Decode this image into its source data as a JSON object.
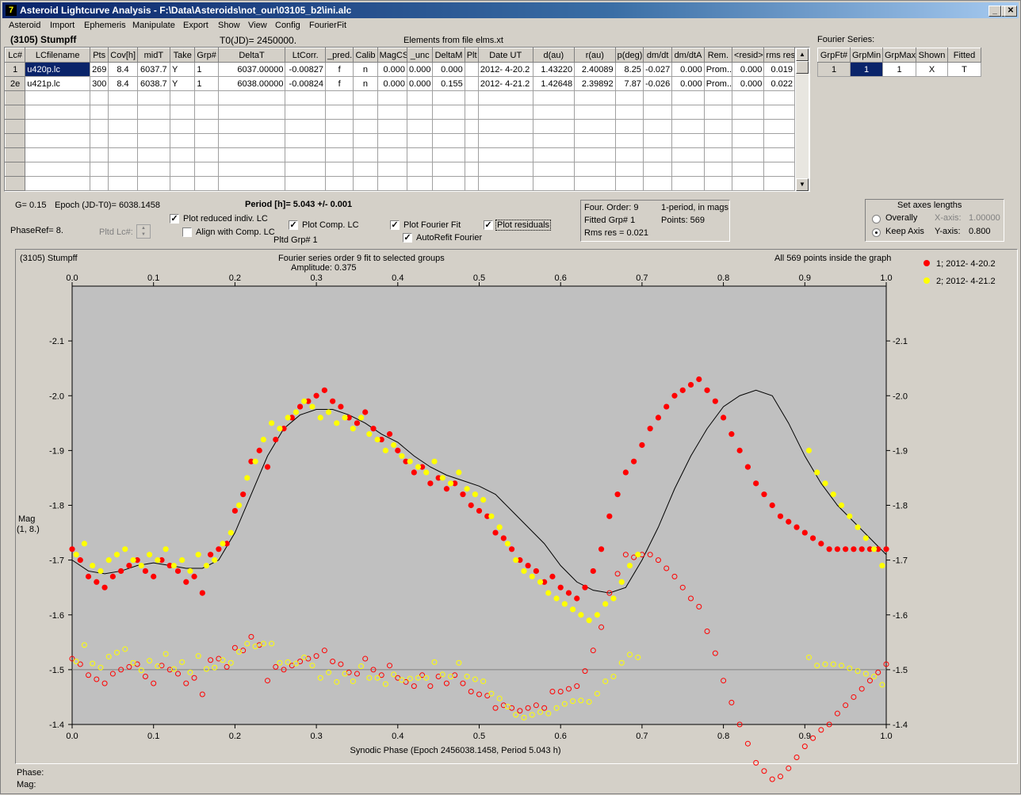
{
  "window": {
    "title": "Asteroid Lightcurve Analysis - F:\\Data\\Asteroids\\not_our\\03105_b2\\ini.alc"
  },
  "menu": [
    "Asteroid",
    "Import",
    "Ephemeris",
    "Manipulate",
    "Export",
    "Show",
    "View",
    "Config",
    "FourierFit"
  ],
  "header": {
    "asteroid": "(3105) Stumpff",
    "t0": "T0(JD)= 2450000.",
    "elements": "Elements from file elms.xt",
    "fourier_series": "Fourier Series:"
  },
  "lc_table": {
    "columns": [
      "Lc#",
      "LCfilename",
      "Pts",
      "Cov[h]",
      "midT",
      "Take",
      "Grp#",
      "DeltaT",
      "LtCorr.",
      "_pred.",
      "Calib",
      "MagCS",
      "_unc",
      "DeltaM",
      "Plt",
      "Date UT",
      "d(au)",
      "r(au)",
      "p(deg)",
      "dm/dt",
      "dm/dtA",
      "Rem.",
      "<resid>",
      "rms res"
    ],
    "rows": [
      [
        "1",
        "u420p.lc",
        "269",
        "8.4",
        "6037.7",
        "Y",
        "1",
        "6037.00000",
        "-0.00827",
        "f",
        "n",
        "0.000",
        "0.000",
        "0.000",
        "",
        "2012- 4-20.2",
        "1.43220",
        "2.40089",
        "8.25",
        "-0.027",
        "0.000",
        "Prom...",
        "0.000",
        "0.019"
      ],
      [
        "2e",
        "u421p.lc",
        "300",
        "8.4",
        "6038.7",
        "Y",
        "1",
        "6038.00000",
        "-0.00824",
        "f",
        "n",
        "0.000",
        "0.000",
        "0.155",
        "",
        "2012- 4-21.2",
        "1.42648",
        "2.39892",
        "7.87",
        "-0.026",
        "0.000",
        "Prom...",
        "0.000",
        "0.022"
      ]
    ]
  },
  "fourier_table": {
    "columns": [
      "GrpFt#",
      "GrpMin",
      "GrpMax",
      "Shown",
      "Fitted"
    ],
    "rows": [
      [
        "1",
        "1",
        "1",
        "X",
        "T"
      ]
    ]
  },
  "params": {
    "g": "G= 0.15",
    "epoch": "Epoch (JD-T0)= 6038.1458",
    "period": "Period [h]= 5.043 +/- 0.001",
    "phase_ref": "PhaseRef= 8.",
    "pltd_lc": "Pltd Lc#:",
    "pltd_grp": "Pltd Grp#  1"
  },
  "checkboxes": {
    "plot_reduced": "Plot reduced indiv. LC",
    "align": "Align with Comp. LC",
    "plot_comp": "Plot Comp. LC",
    "plot_fourier": "Plot Fourier Fit",
    "plot_residuals": "Plot residuals",
    "autorefit": "AutoRefit Fourier"
  },
  "fourier_info": {
    "order": "Four. Order:  9",
    "fitted": "Fitted Grp# 1",
    "rms": "Rms res     = 0.021",
    "period_mode": "1-period, in mags",
    "points": "Points: 569"
  },
  "axes_box": {
    "title": "Set axes lengths",
    "overall": "Overally",
    "keep": "Keep Axis",
    "xaxis": "X-axis:",
    "xval": "1.00000",
    "yaxis": "Y-axis:",
    "yval": "0.800"
  },
  "chart_header": {
    "name": "(3105) Stumpff",
    "fit_title": "Fourier series order 9 fit to selected groups",
    "amplitude": "Amplitude: 0.375",
    "inside": "All 569 points inside the graph",
    "ylabel1": "Mag",
    "ylabel2": "(1, 8.)",
    "legend": [
      "1; 2012- 4-20.2",
      "2; 2012- 4-21.2"
    ]
  },
  "status": {
    "phase": "Phase:",
    "mag": "Mag:"
  },
  "colors": {
    "series1": "#ff0000",
    "series2": "#ffff00",
    "plot_bg": "#c0c0c0"
  },
  "chart_data": {
    "type": "scatter",
    "xlabel": "Synodic Phase (Epoch 2456038.1458, Period 5.043 h)",
    "ylabel": "Mag",
    "xlim": [
      0,
      1
    ],
    "ylim": [
      -2.2,
      -1.4
    ],
    "y_inverted": true,
    "xticks": [
      "0.0",
      "0.1",
      "0.2",
      "0.3",
      "0.4",
      "0.5",
      "0.6",
      "0.7",
      "0.8",
      "0.9",
      "1.0"
    ],
    "yticks": [
      "-2.1",
      "-2.0",
      "-1.9",
      "-1.8",
      "-1.7",
      "-1.6",
      "-1.5",
      "-1.4"
    ],
    "fourier_curve": {
      "x": [
        0,
        0.02,
        0.04,
        0.06,
        0.08,
        0.1,
        0.12,
        0.14,
        0.16,
        0.18,
        0.2,
        0.22,
        0.24,
        0.26,
        0.28,
        0.3,
        0.32,
        0.34,
        0.36,
        0.38,
        0.4,
        0.42,
        0.44,
        0.46,
        0.48,
        0.5,
        0.52,
        0.54,
        0.56,
        0.58,
        0.6,
        0.62,
        0.64,
        0.66,
        0.68,
        0.7,
        0.72,
        0.74,
        0.76,
        0.78,
        0.8,
        0.82,
        0.84,
        0.86,
        0.88,
        0.9,
        0.92,
        0.94,
        0.96,
        0.98,
        1.0
      ],
      "y": [
        -1.7,
        -1.68,
        -1.675,
        -1.68,
        -1.69,
        -1.695,
        -1.69,
        -1.685,
        -1.685,
        -1.7,
        -1.75,
        -1.82,
        -1.89,
        -1.94,
        -1.965,
        -1.975,
        -1.975,
        -1.965,
        -1.95,
        -1.93,
        -1.915,
        -1.89,
        -1.87,
        -1.855,
        -1.845,
        -1.835,
        -1.82,
        -1.79,
        -1.76,
        -1.73,
        -1.69,
        -1.66,
        -1.645,
        -1.64,
        -1.65,
        -1.7,
        -1.76,
        -1.83,
        -1.89,
        -1.94,
        -1.98,
        -2.0,
        -2.01,
        -2.0,
        -1.95,
        -1.89,
        -1.84,
        -1.8,
        -1.77,
        -1.74,
        -1.71
      ]
    },
    "series": [
      {
        "name": "1; 2012- 4-20.2",
        "color": "#ff0000",
        "residual_offset": -1.5,
        "x": [
          0.0,
          0.01,
          0.02,
          0.03,
          0.04,
          0.05,
          0.06,
          0.07,
          0.08,
          0.09,
          0.1,
          0.11,
          0.12,
          0.13,
          0.14,
          0.15,
          0.16,
          0.17,
          0.18,
          0.19,
          0.2,
          0.21,
          0.22,
          0.23,
          0.24,
          0.25,
          0.26,
          0.27,
          0.28,
          0.29,
          0.3,
          0.31,
          0.32,
          0.33,
          0.34,
          0.35,
          0.36,
          0.37,
          0.38,
          0.39,
          0.4,
          0.41,
          0.42,
          0.43,
          0.44,
          0.45,
          0.46,
          0.47,
          0.48,
          0.49,
          0.5,
          0.51,
          0.52,
          0.53,
          0.54,
          0.55,
          0.56,
          0.57,
          0.58,
          0.59,
          0.6,
          0.61,
          0.62,
          0.63,
          0.64,
          0.65,
          0.66,
          0.67,
          0.68,
          0.69,
          0.7,
          0.71,
          0.72,
          0.73,
          0.74,
          0.75,
          0.76,
          0.77,
          0.78,
          0.79,
          0.8,
          0.81,
          0.82,
          0.83,
          0.84,
          0.85,
          0.86,
          0.87,
          0.88,
          0.89,
          0.9,
          0.91,
          0.92,
          0.93,
          0.94,
          0.95,
          0.96,
          0.97,
          0.98,
          0.99,
          1.0
        ],
        "y": [
          -1.72,
          -1.7,
          -1.67,
          -1.66,
          -1.65,
          -1.67,
          -1.68,
          -1.69,
          -1.7,
          -1.68,
          -1.67,
          -1.7,
          -1.69,
          -1.68,
          -1.66,
          -1.67,
          -1.64,
          -1.71,
          -1.72,
          -1.73,
          -1.79,
          -1.82,
          -1.88,
          -1.9,
          -1.87,
          -1.92,
          -1.94,
          -1.96,
          -1.98,
          -1.99,
          -2.0,
          -2.01,
          -1.99,
          -1.98,
          -1.96,
          -1.95,
          -1.97,
          -1.94,
          -1.92,
          -1.93,
          -1.9,
          -1.88,
          -1.86,
          -1.87,
          -1.84,
          -1.85,
          -1.83,
          -1.84,
          -1.82,
          -1.8,
          -1.79,
          -1.78,
          -1.75,
          -1.74,
          -1.72,
          -1.7,
          -1.69,
          -1.68,
          -1.66,
          -1.67,
          -1.65,
          -1.64,
          -1.63,
          -1.65,
          -1.68,
          -1.72,
          -1.78,
          -1.82,
          -1.86,
          -1.88,
          -1.91,
          -1.94,
          -1.96,
          -1.98,
          -2.0,
          -2.01,
          -2.02,
          -2.03,
          -2.01,
          -1.99,
          -1.96,
          -1.93,
          -1.9,
          -1.87,
          -1.84,
          -1.82,
          -1.8,
          -1.78,
          -1.77,
          -1.76,
          -1.75,
          -1.74,
          -1.73,
          -1.72,
          -1.72,
          -1.72,
          -1.72,
          -1.72,
          -1.72,
          -1.72,
          -1.72
        ]
      },
      {
        "name": "2; 2012- 4-21.2",
        "color": "#ffff00",
        "residual_offset": -1.5,
        "x": [
          0.005,
          0.015,
          0.025,
          0.035,
          0.045,
          0.055,
          0.065,
          0.075,
          0.085,
          0.095,
          0.105,
          0.115,
          0.125,
          0.135,
          0.145,
          0.155,
          0.165,
          0.175,
          0.185,
          0.195,
          0.205,
          0.215,
          0.225,
          0.235,
          0.245,
          0.255,
          0.265,
          0.275,
          0.285,
          0.295,
          0.305,
          0.315,
          0.325,
          0.335,
          0.345,
          0.355,
          0.365,
          0.375,
          0.385,
          0.395,
          0.405,
          0.415,
          0.425,
          0.435,
          0.445,
          0.455,
          0.465,
          0.475,
          0.485,
          0.495,
          0.505,
          0.515,
          0.525,
          0.535,
          0.545,
          0.555,
          0.565,
          0.575,
          0.585,
          0.595,
          0.605,
          0.615,
          0.625,
          0.635,
          0.645,
          0.655,
          0.665,
          0.675,
          0.685,
          0.695,
          0.905,
          0.915,
          0.925,
          0.935,
          0.945,
          0.955,
          0.965,
          0.975,
          0.985,
          0.995
        ],
        "y": [
          -1.71,
          -1.73,
          -1.69,
          -1.68,
          -1.7,
          -1.71,
          -1.72,
          -1.7,
          -1.69,
          -1.71,
          -1.7,
          -1.72,
          -1.69,
          -1.7,
          -1.68,
          -1.71,
          -1.69,
          -1.7,
          -1.73,
          -1.75,
          -1.8,
          -1.85,
          -1.88,
          -1.92,
          -1.95,
          -1.94,
          -1.96,
          -1.97,
          -1.99,
          -1.98,
          -1.96,
          -1.97,
          -1.95,
          -1.96,
          -1.94,
          -1.96,
          -1.93,
          -1.92,
          -1.9,
          -1.91,
          -1.89,
          -1.88,
          -1.87,
          -1.86,
          -1.88,
          -1.85,
          -1.84,
          -1.86,
          -1.83,
          -1.82,
          -1.81,
          -1.78,
          -1.76,
          -1.73,
          -1.7,
          -1.68,
          -1.67,
          -1.66,
          -1.64,
          -1.63,
          -1.62,
          -1.61,
          -1.6,
          -1.59,
          -1.6,
          -1.62,
          -1.63,
          -1.66,
          -1.69,
          -1.71,
          -1.9,
          -1.86,
          -1.84,
          -1.82,
          -1.8,
          -1.78,
          -1.76,
          -1.74,
          -1.72,
          -1.69
        ]
      }
    ],
    "residual_line": -1.5
  }
}
